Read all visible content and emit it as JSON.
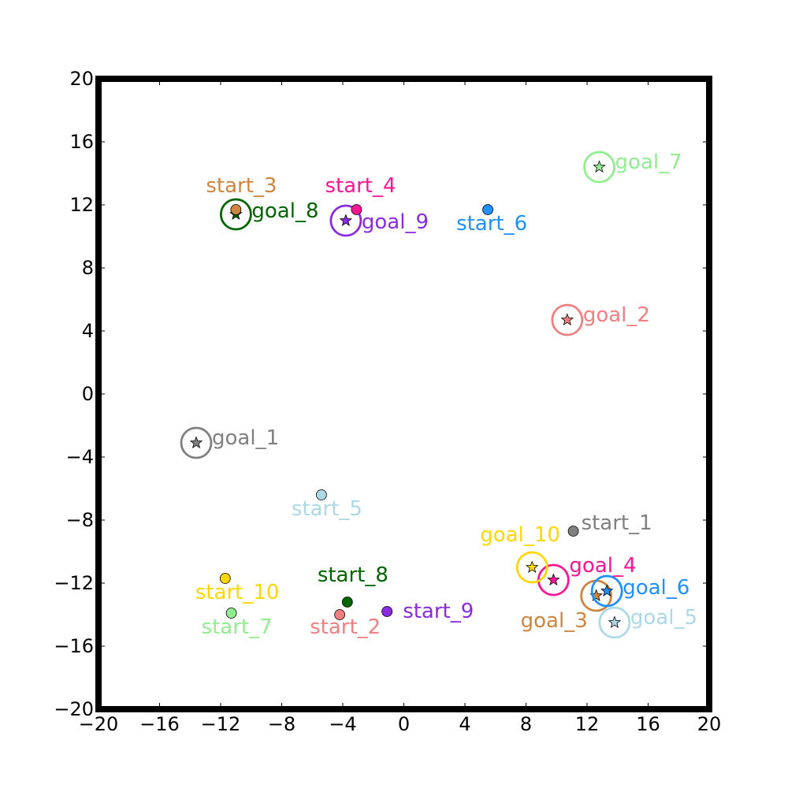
{
  "chart_data": {
    "type": "scatter",
    "title": "",
    "xlabel": "",
    "ylabel": "",
    "xlim": [
      -20,
      20
    ],
    "ylim": [
      -20,
      20
    ],
    "xticks": [
      -20,
      -16,
      -12,
      -8,
      -4,
      0,
      4,
      8,
      12,
      16,
      20
    ],
    "yticks": [
      -20,
      -16,
      -12,
      -8,
      -4,
      0,
      4,
      8,
      12,
      16,
      20
    ],
    "xtick_labels": [
      "−20",
      "−16",
      "−12",
      "−8",
      "−4",
      "0",
      "4",
      "8",
      "12",
      "16",
      "20"
    ],
    "ytick_labels": [
      "−20",
      "−16",
      "−12",
      "−8",
      "−4",
      "0",
      "4",
      "8",
      "12",
      "16",
      "20"
    ],
    "grid": false,
    "starts": [
      {
        "label": "start_1",
        "x": 11.1,
        "y": -8.7,
        "color": "#808080"
      },
      {
        "label": "start_2",
        "x": -4.2,
        "y": -14.0,
        "color": "#f08080"
      },
      {
        "label": "start_3",
        "x": -11.0,
        "y": 11.7,
        "color": "#cd853f"
      },
      {
        "label": "start_4",
        "x": -3.1,
        "y": 11.7,
        "color": "#ff1493"
      },
      {
        "label": "start_5",
        "x": -5.4,
        "y": -6.4,
        "color": "#add8e6"
      },
      {
        "label": "start_6",
        "x": 5.5,
        "y": 11.7,
        "color": "#1e90ff"
      },
      {
        "label": "start_7",
        "x": -11.3,
        "y": -13.9,
        "color": "#90ee90"
      },
      {
        "label": "start_8",
        "x": -3.7,
        "y": -13.2,
        "color": "#006400"
      },
      {
        "label": "start_9",
        "x": -1.1,
        "y": -13.8,
        "color": "#8a2be2"
      },
      {
        "label": "start_10",
        "x": -11.7,
        "y": -11.7,
        "color": "#ffd700"
      }
    ],
    "goals": [
      {
        "label": "goal_1",
        "x": -13.6,
        "y": -3.1,
        "color": "#808080"
      },
      {
        "label": "goal_2",
        "x": 10.7,
        "y": 4.7,
        "color": "#f08080"
      },
      {
        "label": "goal_3",
        "x": 12.6,
        "y": -12.8,
        "color": "#cd853f"
      },
      {
        "label": "goal_4",
        "x": 9.8,
        "y": -11.8,
        "color": "#ff1493"
      },
      {
        "label": "goal_5",
        "x": 13.8,
        "y": -14.5,
        "color": "#add8e6"
      },
      {
        "label": "goal_6",
        "x": 13.3,
        "y": -12.5,
        "color": "#1e90ff"
      },
      {
        "label": "goal_7",
        "x": 12.8,
        "y": 14.4,
        "color": "#90ee90"
      },
      {
        "label": "goal_8",
        "x": -11.0,
        "y": 11.4,
        "color": "#006400"
      },
      {
        "label": "goal_9",
        "x": -3.8,
        "y": 11.0,
        "color": "#8a2be2"
      },
      {
        "label": "goal_10",
        "x": 8.4,
        "y": -11.0,
        "color": "#ffd700"
      }
    ]
  }
}
